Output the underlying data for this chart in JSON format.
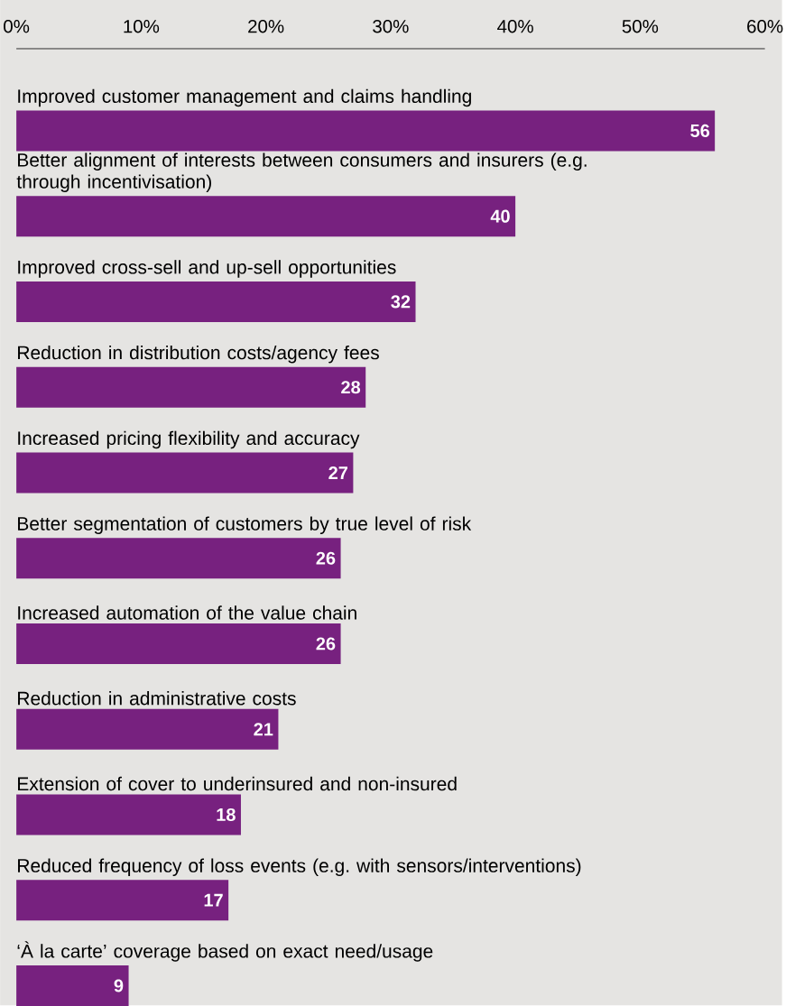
{
  "chart_data": {
    "type": "bar",
    "orientation": "horizontal",
    "categories": [
      "Improved customer management and claims handling",
      "Better alignment of interests between consumers and insurers (e.g. through incentivisation)",
      "Improved cross-sell and up-sell opportunities",
      "Reduction in distribution costs/agency fees",
      "Increased pricing flexibility and accuracy",
      "Better segmentation of customers by true level of risk",
      "Increased automation of the value chain",
      "Reduction in administrative costs",
      "Extension of cover to underinsured and non-insured",
      "Reduced frequency of loss events (e.g. with sensors/interventions)",
      "‘À la carte’ coverage based on exact need/usage"
    ],
    "values": [
      56,
      40,
      32,
      28,
      27,
      26,
      26,
      21,
      18,
      17,
      9
    ],
    "color": "#77217f",
    "xlim": [
      0,
      60
    ],
    "xticks": [
      {
        "value": 0,
        "label": "0%"
      },
      {
        "value": 10,
        "label": "10%"
      },
      {
        "value": 20,
        "label": "20%"
      },
      {
        "value": 30,
        "label": "30%"
      },
      {
        "value": 40,
        "label": "40%"
      },
      {
        "value": 50,
        "label": "50%"
      },
      {
        "value": 60,
        "label": "60%"
      }
    ],
    "data_labels": true
  }
}
